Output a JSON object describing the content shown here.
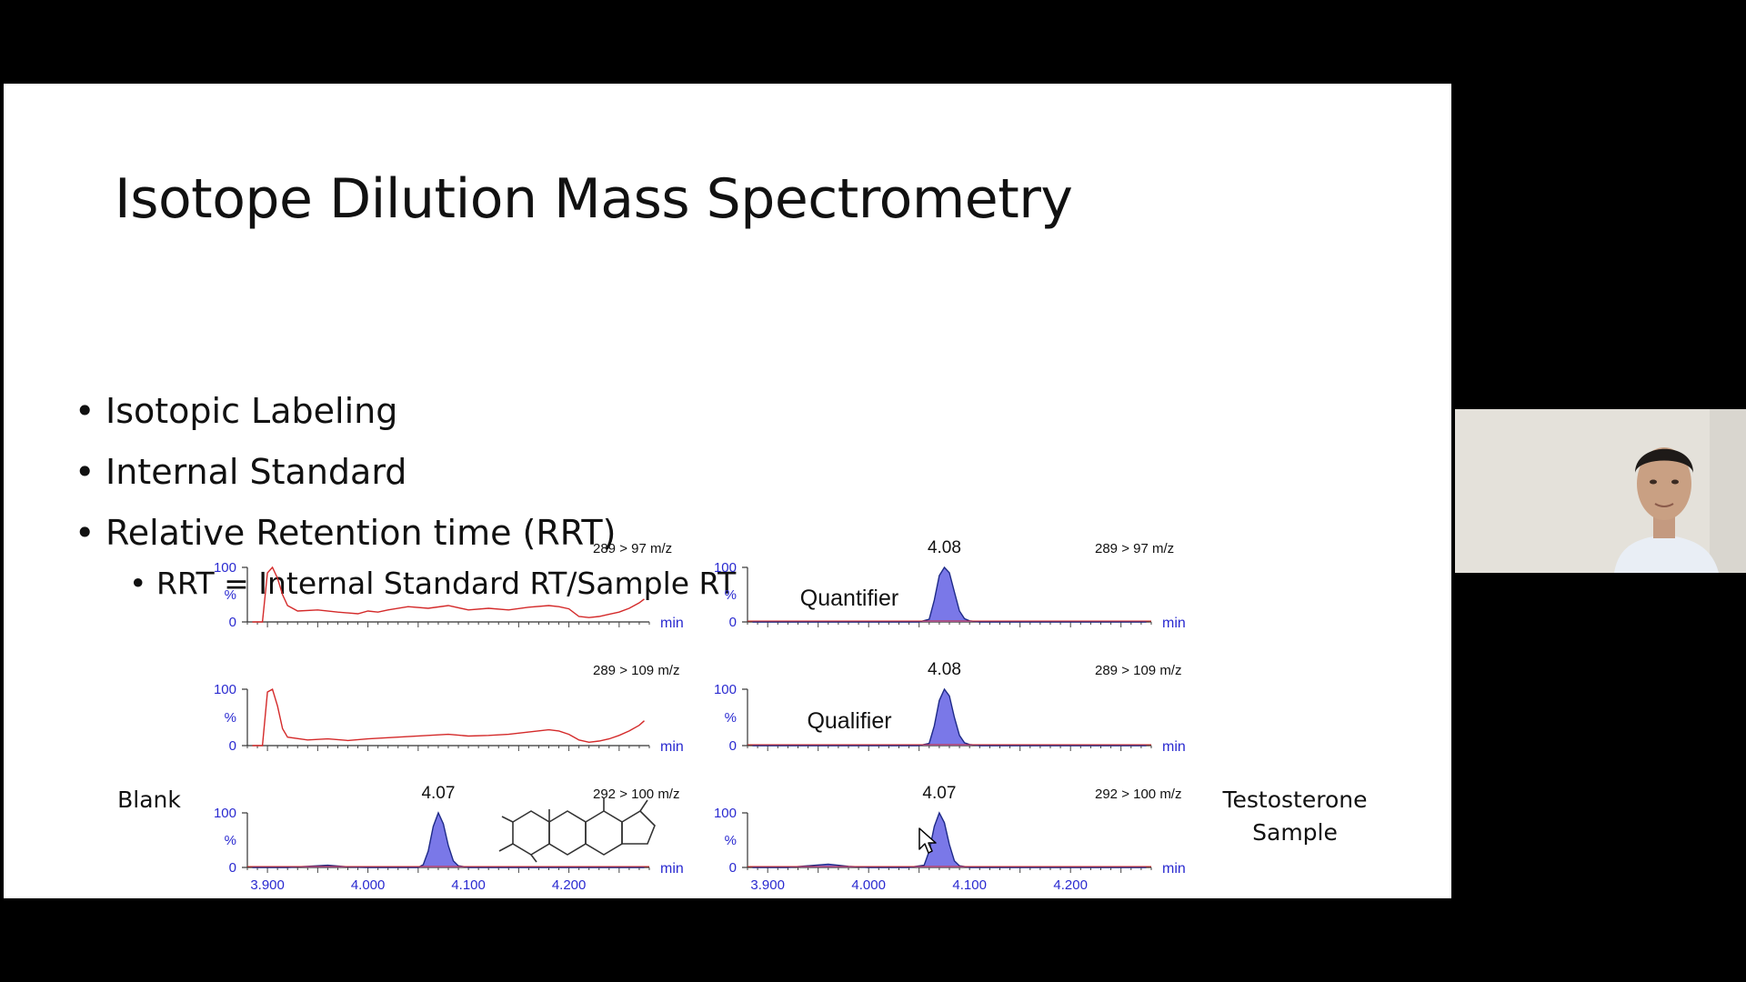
{
  "slide": {
    "title": "Isotope Dilution Mass Spectrometry",
    "bullets": [
      "Isotopic Labeling",
      "Internal Standard",
      "Relative Retention time (RRT)"
    ],
    "sub_bullet": "RRT = Internal Standard RT/Sample RT",
    "labels": {
      "left": "Blank",
      "right_line1": "Testosterone",
      "right_line2": "Sample"
    }
  },
  "chart_data": [
    {
      "type": "line",
      "panel": "blank-289-97",
      "transition": "289 > 97 m/z",
      "xlabel": "min",
      "ylabel": "%",
      "yticks": [
        "100",
        "0"
      ],
      "xlim": [
        3.88,
        4.28
      ],
      "ylim": [
        0,
        100
      ],
      "color": "#d42a2a",
      "fill": false,
      "x": [
        3.885,
        3.895,
        3.9,
        3.905,
        3.91,
        3.915,
        3.92,
        3.93,
        3.95,
        3.97,
        3.99,
        4.0,
        4.01,
        4.02,
        4.04,
        4.06,
        4.08,
        4.1,
        4.12,
        4.14,
        4.16,
        4.18,
        4.19,
        4.2,
        4.21,
        4.22,
        4.23,
        4.24,
        4.25,
        4.26,
        4.27,
        4.275
      ],
      "y": [
        0,
        0,
        90,
        100,
        80,
        50,
        30,
        20,
        22,
        18,
        15,
        20,
        18,
        22,
        28,
        25,
        30,
        22,
        25,
        22,
        27,
        30,
        28,
        24,
        10,
        8,
        10,
        14,
        18,
        25,
        35,
        42
      ]
    },
    {
      "type": "line",
      "panel": "blank-289-109",
      "transition": "289 > 109 m/z",
      "xlabel": "min",
      "ylabel": "%",
      "yticks": [
        "100",
        "0"
      ],
      "xlim": [
        3.88,
        4.28
      ],
      "ylim": [
        0,
        100
      ],
      "color": "#d42a2a",
      "fill": false,
      "x": [
        3.885,
        3.895,
        3.9,
        3.905,
        3.91,
        3.915,
        3.92,
        3.94,
        3.96,
        3.98,
        4.0,
        4.02,
        4.04,
        4.06,
        4.08,
        4.1,
        4.12,
        4.14,
        4.16,
        4.18,
        4.19,
        4.2,
        4.21,
        4.22,
        4.23,
        4.24,
        4.25,
        4.26,
        4.27,
        4.275
      ],
      "y": [
        0,
        0,
        95,
        100,
        70,
        30,
        15,
        10,
        12,
        9,
        12,
        14,
        16,
        18,
        20,
        17,
        18,
        20,
        24,
        28,
        26,
        20,
        10,
        6,
        8,
        12,
        18,
        26,
        36,
        44
      ]
    },
    {
      "type": "line",
      "panel": "blank-292-100",
      "transition": "292 > 100 m/z",
      "peak_label": "4.07",
      "xlabel": "min",
      "ylabel": "%",
      "yticks": [
        "100",
        "%",
        "0"
      ],
      "xtick_labels": [
        "3.900",
        "4.000",
        "4.100",
        "4.200"
      ],
      "xtick_values": [
        3.9,
        4.0,
        4.1,
        4.2
      ],
      "xlim": [
        3.88,
        4.28
      ],
      "ylim": [
        0,
        100
      ],
      "color": "#1e2a88",
      "fill": true,
      "fill_color": "#7a78e8",
      "x": [
        3.885,
        3.92,
        3.94,
        3.96,
        3.98,
        4.0,
        4.03,
        4.05,
        4.055,
        4.06,
        4.065,
        4.07,
        4.075,
        4.08,
        4.085,
        4.09,
        4.1,
        4.15,
        4.2,
        4.25,
        4.275
      ],
      "y": [
        0,
        0,
        2,
        4,
        1,
        0,
        0,
        0,
        5,
        30,
        75,
        100,
        80,
        40,
        12,
        3,
        0,
        0,
        0,
        0,
        0
      ]
    },
    {
      "type": "line",
      "panel": "sample-289-97",
      "transition": "289 > 97 m/z",
      "peak_label": "4.08",
      "annotation": "Quantifier",
      "xlabel": "min",
      "ylabel": "%",
      "yticks": [
        "100",
        "%",
        "0"
      ],
      "xlim": [
        3.88,
        4.28
      ],
      "ylim": [
        0,
        100
      ],
      "color": "#1e2a88",
      "fill": true,
      "fill_color": "#7a78e8",
      "x": [
        3.885,
        4.0,
        4.05,
        4.06,
        4.065,
        4.07,
        4.075,
        4.08,
        4.085,
        4.09,
        4.095,
        4.1,
        4.11,
        4.2,
        4.275
      ],
      "y": [
        0,
        0,
        0,
        5,
        40,
        85,
        100,
        90,
        55,
        20,
        6,
        2,
        0,
        0,
        0
      ]
    },
    {
      "type": "line",
      "panel": "sample-289-109",
      "transition": "289 > 109 m/z",
      "peak_label": "4.08",
      "annotation": "Qualifier",
      "xlabel": "min",
      "ylabel": "%",
      "yticks": [
        "100",
        "%",
        "0"
      ],
      "xlim": [
        3.88,
        4.28
      ],
      "ylim": [
        0,
        100
      ],
      "color": "#1e2a88",
      "fill": true,
      "fill_color": "#7a78e8",
      "x": [
        3.885,
        4.0,
        4.05,
        4.06,
        4.065,
        4.07,
        4.075,
        4.08,
        4.085,
        4.09,
        4.095,
        4.1,
        4.11,
        4.2,
        4.275
      ],
      "y": [
        0,
        0,
        0,
        4,
        35,
        80,
        100,
        88,
        50,
        18,
        5,
        2,
        0,
        0,
        0
      ]
    },
    {
      "type": "line",
      "panel": "sample-292-100",
      "transition": "292 > 100 m/z",
      "peak_label": "4.07",
      "xlabel": "min",
      "ylabel": "%",
      "yticks": [
        "100",
        "%",
        "0"
      ],
      "xtick_labels": [
        "3.900",
        "4.000",
        "4.100",
        "4.200"
      ],
      "xtick_values": [
        3.9,
        4.0,
        4.1,
        4.2
      ],
      "xlim": [
        3.88,
        4.28
      ],
      "ylim": [
        0,
        100
      ],
      "color": "#1e2a88",
      "fill": true,
      "fill_color": "#7a78e8",
      "x": [
        3.885,
        3.92,
        3.94,
        3.96,
        3.98,
        4.0,
        4.04,
        4.055,
        4.06,
        4.065,
        4.07,
        4.075,
        4.08,
        4.085,
        4.09,
        4.1,
        4.2,
        4.275
      ],
      "y": [
        0,
        0,
        3,
        6,
        2,
        0,
        0,
        4,
        30,
        75,
        100,
        82,
        42,
        12,
        3,
        0,
        0,
        0
      ]
    }
  ]
}
